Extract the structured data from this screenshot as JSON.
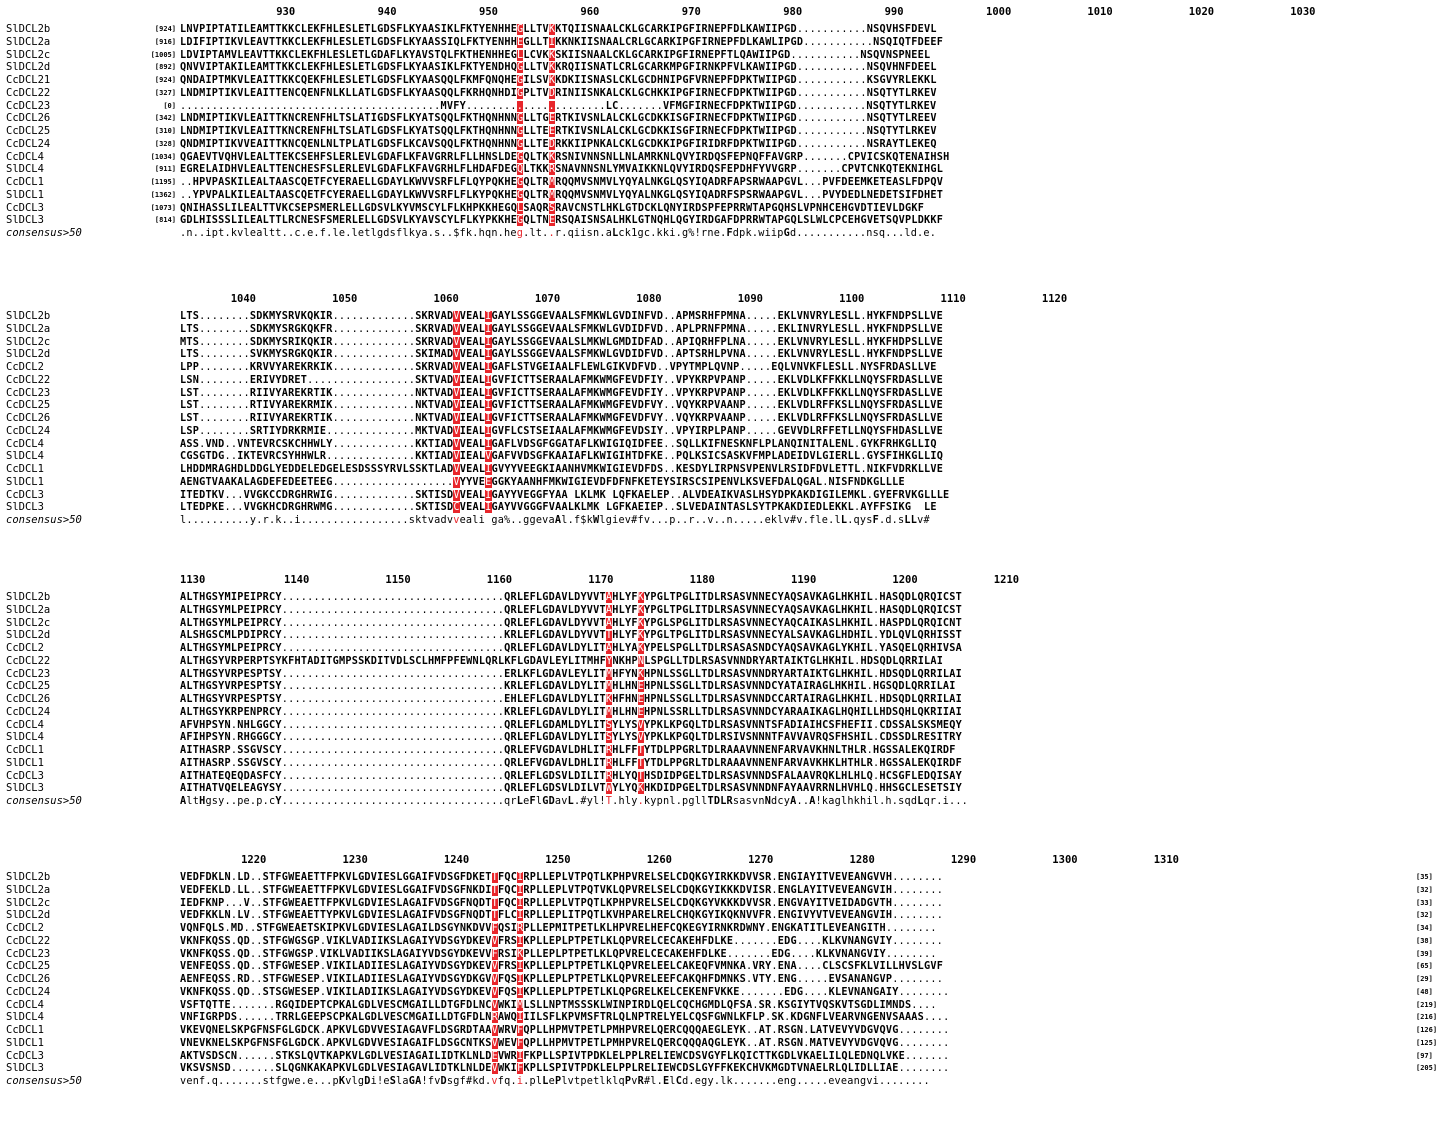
{
  "colors": {
    "conserved_bg": "#e8262b",
    "conserved_fg": "#ffffff",
    "consensus_highlight": "#e8262b"
  },
  "consensus_label": "consensus>50",
  "blocks": [
    {
      "ruler": [
        "930",
        "940",
        "950",
        "960",
        "970",
        "980",
        "990",
        "1000",
        "1010",
        "1020",
        "1030"
      ],
      "rows": [
        {
          "name": "SlDCL2b",
          "start": "[924]",
          "seq": "LNVPIPTATILEAMTTKKCLEKFHLESLETLGDSFLKYAASIKLFKTYENHHEGLLTVKKTQIISNAALCKLGCARKIPGFIRNEPFDLKAWIIPGD...........NSQVHSFDEVL"
        },
        {
          "name": "SlDCL2a",
          "start": "[916]",
          "seq": "LDIFIPTIKVLEAVTTKKCLEKFHLESLETLGDSFLKYAASSIQLFKTYENHHEGLLTIKKNKIISNAALCRLGCARKIPGFIRNEPFDLKAWLIPGD...........NSQIQTFDEEF"
        },
        {
          "name": "SlDCL2c",
          "start": "[1005]",
          "seq": "LDVIPTAMVLEAVTTKKCLEKFHLESLETLGDAFLKYAVSTQLFKTHENHHEGLLCVKKSKIISNAALCKLGCARKIPGFIRNEPFTLQAWIIPGD...........NSQVNSPNEEL"
        },
        {
          "name": "SlDCL2d",
          "start": "[892]",
          "seq": "QNVVIPTAKILEAMTTKKCLEKFHLESLETLGDSFLKYAASIKLFKTYENDHQGLLTVKKRQIISNATLCRLGCARKMPGFIRNKPFVLKAWIIPGD...........NSQVHNFDEEL"
        },
        {
          "name": "CcDCL21",
          "start": "[924]",
          "seq": "QNDAIPTMKVLEAITTKKCQEKFHLESLETLGDSFLKYAASQQLFKMFQNQHEGILSVKKDKIISNASLCKLGCDHNIPGFVRNEPFDPKTWIIPGD...........KSGVYRLEKKL"
        },
        {
          "name": "CcDCL22",
          "start": "[327]",
          "seq": "LNDMIPTIKVLEAITTENCQENFNLKLLATLGDSFLKYAASQQLFKRHQNHDIGPLTVDRINIISNKALCKLGCHKKIPGFIRNECFDPKTWIIPGD...........NSQTYTLRKEV"
        },
        {
          "name": "CcDCL23",
          "start": "[0]",
          "seq": ".........................................MVFY......................LC.......VFMGFIRNECFDPKTWIIPGD...........NSQTYTLRKEV"
        },
        {
          "name": "CcDCL26",
          "start": "[342]",
          "seq": "LNDMIPTIKVLEAITTKNCRENFHLTSLATIGDSFLKYATSQQLFKTHQNHNNGLLTGERTKIVSNLALCKLGCDKKISGFIRNECFDPKTWIIPGD...........NSQTYTLREEV"
        },
        {
          "name": "CcDCL25",
          "start": "[310]",
          "seq": "LNDMIPTIKVLEAITTKNCRENFHLTSLATLGDSFLKYATSQQLFKTHQNHNNGLLTEERTKIVSNLALCKLGCDKKISGFIRNECFDPKTWIIPGD...........NSQTYTLRKEV"
        },
        {
          "name": "CcDCL24",
          "start": "[328]",
          "seq": "QNDMIPTIKVVEAITTKNCQENLNLTPLATLGDSFLKCAVSQQLFKTHQNHNNGLLTEDRKKIIPNKALCKLGCDKKIPGFIRIDRFDPKTWIIPGD...........NSRAYTLEKEQ"
        },
        {
          "name": "CcDCL4",
          "start": "[1034]",
          "seq": "QGAEVTVQHVLEALTTEKCSEHFSLERLEVLGDAFLKFAVGRRLFLLHNSLDEGQLTKKRSNIVNNSNLLNLAMRKNLQVYIRDQSFEPNQFFAVGRP.......CPVICSKQTENAIHSH"
        },
        {
          "name": "SlDCL4",
          "start": "[911]",
          "seq": "EGRELAIDHVLEALTTENCHESFSLERLEVLGDAFLKFAVGRHLFLHDAFDEGQLTKKRSNAVNNSNLYMVAIKKNLQVYIRDQSFEPDHFYVVGRP.......CPVTCNKQTEKNIHGL"
        },
        {
          "name": "CcDCL1",
          "start": "[1195]",
          "seq": "..HPVPASKILEALTAASCQETFCYERAELLGDAYLKWVVSRFLFLQYPQKHEGQLTRMRQQMVSNMVLYQYALNKGLQSYIQADRFAPSRWAAPGVL...PVFDEEMKETEASLFDPQV"
        },
        {
          "name": "SlDCL1",
          "start": "[1362]",
          "seq": "..YPVPALKILEALTAASCQETFCYERAELLGDAYLKWVVSRFLFLKYPQKHEGQLTRMRQQMVSNMVLYQYALNKGLQSYIQADRFSPSRWAAPGVL...PVYDEDLNEDETSIFDHET"
        },
        {
          "name": "CcDCL3",
          "start": "[1073]",
          "seq": "QNIHASSLILEALTTVKCSEPSMERLELLGDSVLKYVMSCYLFLKHPKKHEGQLSAQRSRAVCNSTLHKLGTDCKLQNYIRDSPFEPRRWTAPGQHSLVPNHCEHGVDTIEVLDGKF"
        },
        {
          "name": "SlDCL3",
          "start": "[814]",
          "seq": "GDLHISSSLILEALTTLRCNESFSMERLELLGDSVLKYAVSCYLFLKYPKKHEGQLTNERSQAISNSALHKLGTNQHLQGYIRDGAFDPRRWTAPGQLSLWLCPCEHGVETSQVPLDKKF"
        },
        {
          "name": "consensus>50",
          "start": "",
          "seq": ".n..ipt.kvlealtt..c.e.f.le.letlgdsflkya.s..$fk.hqn.heg.lt..r.qiisn.aLck1gc.kki.g%!rne.Fdpk.wiipGd...........nsq...ld.e."
        }
      ]
    },
    {
      "ruler": [
        "1040",
        "1050",
        "1060",
        "1070",
        "1080",
        "1090",
        "1100",
        "1110",
        "1120"
      ],
      "rows": [
        {
          "name": "SlDCL2b",
          "start": "",
          "seq": "LTS........SDKMYSRVKQKIR.............SKRVADVVEALIGAYLSSGGEVAALSFMKWLGVDINFVD..APMSRHFPMNA.....EKLVNVRYLESLL.HYKFNDPSLLVE"
        },
        {
          "name": "SlDCL2a",
          "start": "",
          "seq": "LTS........SDKMYSRGKQKFR.............SKRVADVVEALIGAYLSSGGEVAALSFMKWLGVDIDFVD..APLPRNFPMNA.....EKLINVRYLESLL.HYKFNDPSLLVE"
        },
        {
          "name": "SlDCL2c",
          "start": "",
          "seq": "MTS........SDKMYSRIKQKIR.............SKRVADVVEALIGAYLSSGGEVAALSLMKWLGMDIDFAD..APIQRHFPLNA.....EKLVNVRYLESLL.HYKFHDPSLLVE"
        },
        {
          "name": "SlDCL2d",
          "start": "",
          "seq": "LTS........SVKMYSRGKQKIR.............SKIMADVVEALIGAYLSSGGEVAALSFMKWLGVDIDFVD..APTSRHLPVNA.....EKLVNVRYLESLL.HYKFNDPSLLVE"
        },
        {
          "name": "CcDCL2",
          "start": "",
          "seq": "LPP........KRVVYAREKRKIK.............SKRVADVVEALIGAFLSTVGEIAALFLEWLGIKVDFVD..VPYTMPLQVNP.....EQLVNVKFLESLL.NYSFRDASLLVE"
        },
        {
          "name": "CcDCL22",
          "start": "",
          "seq": "LSN........ERIVYDRET.................SKTVADVIEALIGVFICTTSERAALAFMKWMGFEVDFIY..VPYKRPVPANP.....EKLVDLKFFKKLLNQYSFRDASLLVE"
        },
        {
          "name": "CcDCL23",
          "start": "",
          "seq": "LST........RIIVYAREKRTIK.............NKTVADVIEALIGVFICTTSERAALAFMKWMGFEVDFIY..VPYKRPVPANP.....EKLVDLKFFKKLLNQYSFRDASLLVE"
        },
        {
          "name": "CcDCL25",
          "start": "",
          "seq": "LST........RTIVYAREKRMIK.............NKTVADVIEALIGVFICTTSERAALAFMKWMGFEVDFVY..VQYKRPVAANP.....EKLVDLRFFKSLLNQYSFRDASLLVE"
        },
        {
          "name": "CcDCL26",
          "start": "",
          "seq": "LST........RIIVYAREKRTIK.............NKTVADVIEALIGVFICTTSERAALAFMKWMGFEVDFVY..VQYKRPVAANP.....EKLVDLRFFKSLLNQYSFRDASLLVE"
        },
        {
          "name": "CcDCL24",
          "start": "",
          "seq": "LSP........SRTIYDRKRMIE..............MKTVADVIEALIGVFLCSTSEIAALAFMKWMGFEVDSIY..VPYIRPLPANP.....GEVVDLRFFETLLNQYSFHDASLLVE"
        },
        {
          "name": "CcDCL4",
          "start": "",
          "seq": "ASS.VND..VNTEVRCSKCHHWLY.............KKTIADVVEALIGAFLVDSGFGGATAFLKWIGIQIDFEE..SQLLKIFNESKNFLPLANQINITALENL.GYKFRHKGLLIQ"
        },
        {
          "name": "SlDCL4",
          "start": "",
          "seq": "CGSGTDG..IKTEVRCSYHHWLR..............KKTIADVIEALVGAFVVDSGFKAAIAFLKWIGIHTDFKE..PQLKSICSASKVFMPLADEIDVLGIERLL.GYSFIHKGLLIQ"
        },
        {
          "name": "CcDCL1",
          "start": "",
          "seq": "LHDDMRAGHDLDDGLYEDDELEDGELESDSSSYRVLSSKTLADVVEALIGVYYVEEGKIAANHVMKWIGIEVDFDS..KESDYLIRPNSVPENVLRSIDFDVLETTL.NIKFVDRKLLVE"
        },
        {
          "name": "SlDCL1",
          "start": "",
          "seq": "AENGTVAAKALAGDEFEDEETEEG...................VYYVEEGGKYAANHFMKWIGIEVDFDFNFKETEYSIRSCSIPENVLKSVEFDALQGAL.NISFNDKGLLLE"
        },
        {
          "name": "CcDCL3",
          "start": "",
          "seq": "ITEDTKV...VVGKCCDRGHRWIG.............SKTISDVVEALIGAYYVEGGFYAA LKLMK LQFKAELEP..ALVDEAIKVASLHSYDPKAKDIGILEMKL.GYEFRVKGLLLE"
        },
        {
          "name": "SlDCL3",
          "start": "",
          "seq": "LTEDPKE...VVGKHCDRGHRWMG.............SKTISDCVEALIGAYVVGGGFVAALKLMK LGFKAEIEP..SLVEDAINTASLSYTPKAKDIEDLEKKL.AYFFSIKG  LE"
        },
        {
          "name": "consensus>50",
          "start": "",
          "seq": "l..........y.r.k..i.................sktvadvveali ga%..ggevaAl.f$kWlgiev#fv...p..r..v..n.....eklv#v.fle.lL.qysF.d.sLLv#"
        }
      ]
    },
    {
      "ruler": [
        "1130",
        "1140",
        "1150",
        "1160",
        "1170",
        "1180",
        "1190",
        "1200",
        "1210"
      ],
      "rows": [
        {
          "name": "SlDCL2b",
          "start": "",
          "seq": "ALTHGSYMIPEIPRCY...................................QRLEFLGDAVLDYVVTAHLYFKYPGLTPGLITDLRSASVNNECYAQSAVKAGLHKHIL.HASQDLQRQICST"
        },
        {
          "name": "SlDCL2a",
          "start": "",
          "seq": "ALTHGSYMLPEIPRCY...................................QRLEFLGDAVLDYVVTAHLYFKYPGLTPGLITDLRSASVNNECYAQSAVKAGLHKHIL.HASQDLQRQICST"
        },
        {
          "name": "SlDCL2c",
          "start": "",
          "seq": "ALTHGSYMLPEIPRCY...................................QRLEFLGDAVLDYVVTAHLYFKYPGLSPGLITDLRSASVNNECYAQCAIKASLHKHIL.HASPDLQRQICNT"
        },
        {
          "name": "SlDCL2d",
          "start": "",
          "seq": "ALSHGSCMLPDIPRCY...................................KRLEFLGDAVLDYVVTTHLYFKYPGLTPGLITDLRSASVNNECYALSAVKAGLHDHIL.YDLQVLQRHISST"
        },
        {
          "name": "CcDCL2",
          "start": "",
          "seq": "ALTHGSYMLPEIPRCY...................................QRLEFLGDAVLDYLITAHLYAKYPELSPGLLTDLRSASASNDCYAQSAVKAGLYKHIL.YASQELQRHIVSA"
        },
        {
          "name": "CcDCL22",
          "start": "",
          "seq": "ALTHGSYVRPERPTSYKFHTADITGMPSSKDITVDLSCLHMFPFEWNLQRLKFLGDAVLEYLITMHFYNKHPNLSPGLLTDLRSASVNNDRYARTAIKTGLHKHIL.HDSQDLQRRILAI"
        },
        {
          "name": "CcDCL23",
          "start": "",
          "seq": "ALTHGSYVRPESPTSY...................................ERLKFLGDAVLEYLITMHFYNKHPNLSSGLLTDLRSASVNNDRYARTAIKTGLHKHIL.HDSQDLQRRILAI"
        },
        {
          "name": "CcDCL25",
          "start": "",
          "seq": "ALTHGSYVRPESPTSY...................................KRLEFLGDAVLDYLITMHLHNEHPNLSSGLLTDLRSASVNNDCYATAIRAGLHKHIL.HGSQDLQRRILAI"
        },
        {
          "name": "CcDCL26",
          "start": "",
          "seq": "ALTHGSYVRPESPTSY...................................EHLEFLGDAVLDYLITKHFHNEHPNLSSGLLTDLRSASVNNDCCARTAIRAGLHKHIL.HDSQDLQRRILAI"
        },
        {
          "name": "CcDCL24",
          "start": "",
          "seq": "ALTHGSYKRPENPRCY...................................KRLEFLGDAVLDYLITMHLHNEHPNLSSRLLTDLRSASVNNDCYARAAIKAGLHQHILLHDSQHLQKRIIAI"
        },
        {
          "name": "CcDCL4",
          "start": "",
          "seq": "AFVHPSYN.NHLGGCY...................................QRLEFLGDAMLDYLITSYLYSVYPKLKPGQLTDLRSASVNNTSFADIAIHCSFHEFII.CDSSALSKSMEQY"
        },
        {
          "name": "SlDCL4",
          "start": "",
          "seq": "AFIHPSYN.RHGGGCY...................................QRLEFLGDAVLDYLITSYLYSVYPKLKPGQLTDLRSIVSNNNTFAVVAVRQSFHSHIL.CDSSDLRESITRY"
        },
        {
          "name": "CcDCL1",
          "start": "",
          "seq": "AITHASRP.SSGVSCY...................................QRLEFVGDAVLDHLITRHLFFTYTDLPPGRLTDLRAAAVNNENFARVAVKHNLTHLR.HGSSALEKQIRDF"
        },
        {
          "name": "SlDCL1",
          "start": "",
          "seq": "AITHASRP.SSGVSCY...................................QRLEFVGDAVLDHLITRHLFFTYTDLPPGRLTDLRAAAVNNENFARVAVKHKLHTHLR.HGSSALEKQIRDF"
        },
        {
          "name": "CcDCL3",
          "start": "",
          "seq": "AITHATEQEQDASFCY...................................QRLEFLGDSVLDILITRHLYQTHSDIDPGELTDLRSASVNNDSFALAAVRQKLHLHLQ.HCSGFLEDQISAY"
        },
        {
          "name": "SlDCL3",
          "start": "",
          "seq": "AITHATVQELEAGYSY...................................QRLEFLGDSVLDILVTWYLYQKHKDIDPGELTDLRSASVNNDNFAYAAVRRNLHVHLQ.HHSGCLESETSIY"
        },
        {
          "name": "consensus>50",
          "start": "",
          "seq": "AltHgsy..pe.p.cY...................................qrLeFlGDavL.#yl!T.hly.kypnl.pgllTDLRsasvnNdcyA..A!kaglhkhil.h.sqdLqr.i..."
        }
      ]
    },
    {
      "ruler": [
        "1220",
        "1230",
        "1240",
        "1250",
        "1260",
        "1270",
        "1280",
        "1290",
        "1300",
        "1310"
      ],
      "rows": [
        {
          "name": "SlDCL2b",
          "start": "",
          "seq": "VEDFDKLN.LD..STFGWEAETTFPKVLGDVIESLGGAIFVDSGFDKETTFQCIRPLLEPLVTPQTLKPHPVRELSELCDQKGYIRKKDVVSR.ENGIAYITVEVEANGVVH........",
          "end": "[35]"
        },
        {
          "name": "SlDCL2a",
          "start": "",
          "seq": "VEDFEKLD.LL..STFGWEAETTFPKVLGDVIESLGGAIFVDSGFNKDITFQCIRPLLEPLVTPQTVKLQPVRELSELCDQKGYIKKKDVISR.ENGLAYITVEVEANGVIH........",
          "end": "[32]"
        },
        {
          "name": "SlDCL2c",
          "start": "",
          "seq": "IEDFKNP...V..STFGWEAETTFPKVLGDVIESLAGAIFVDSGFNQDTTFQCIRPLLEPLVTPQTLKPHPVRELSELCDQKGYVKKKDVVSR.ENGVAYITVEIDADGVTH........",
          "end": "[33]"
        },
        {
          "name": "SlDCL2d",
          "start": "",
          "seq": "VEDFKKLN.LV..STFGWEAETTYPKVLGDVIESLAGAIFVDSGFNQDTTFLCIRPLLEPLITPQTLKVHPARELRELCHQKGYIKQKNVVFR.ENGIVYVTVEVEANGVIH........",
          "end": "[32]"
        },
        {
          "name": "CcDCL2",
          "start": "",
          "seq": "VQNFQLS.MD..STFGWEAETSKIPKVLGDVIESLAGAILDSGYNKDVVFQSIRPLLEPMITPETLKLHPVRELHEFCQKEGYIRNKRDWNY.ENGKATITLEVEANGITH........",
          "end": "[34]"
        },
        {
          "name": "CcDCL22",
          "start": "",
          "seq": "VKNFKQSS.QD..STFGWGSGP.VIKLVADIIKSLAGAIYVDSGYDKEVVFRSIKPLLEPLPTPETLKLQPVRELCECAKEHFDLKE.......EDG....KLKVNANGVIY........",
          "end": "[38]"
        },
        {
          "name": "CcDCL23",
          "start": "",
          "seq": "VKNFKQSS.QD..STFGWGSP.VIKLVADIIKSLAGAIYVDSGYDKEVVFRSIKPLLEPLPTPETLKLQPVRELCECAKEHFDLKE.......EDG....KLKVNANGVIY........",
          "end": "[39]"
        },
        {
          "name": "CcDCL25",
          "start": "",
          "seq": "VENFEQSS.QD..STFGWESEP.VIKILADIIESLAGAIYVDSGYDKEVVFRSIKPLLEPLPTPETLKLQPVRELEELCAKEQFVMNKA.VRY.ENA....CLSCSFKLVILLHVSLGVF",
          "end": "[65]"
        },
        {
          "name": "CcDCL26",
          "start": "",
          "seq": "AENFEQSS.RD..STFGWESEP.VIKILADIIESLAGAIYVDSGYDKGVVFQSIKPLLEPLPTPETLKLQPVRELEEFCAKQHFDMNKS.VTY.ENG.....EVSANANGVP........",
          "end": "[29]"
        },
        {
          "name": "CcDCL24",
          "start": "",
          "seq": "VKNFKQSS.QD..STSGWESEP.VIKILADIIKSLAGAIYVDSGYDKEVVFQSIKPLLEPLPTPETLKLQPGRELKELCEKENFVKKE.......EDG....KLEVNANGAIY........",
          "end": "[48]"
        },
        {
          "name": "CcDCL4",
          "start": "",
          "seq": "VSFTQTTE.......RGQIDEPTCPKALGDLVESCMGAILLDTGFDLNCVWKIMLSLLNPTMSSSKLWINPIRDLQELCQCHGMDLQFSA.SR.KSGIYTVQSKVTSGDLIMNDS....",
          "end": "[219]"
        },
        {
          "name": "SlDCL4",
          "start": "",
          "seq": "VNFIGRPDS......TRRLGEEPSCPKALGDLVESCMGAILLDTGFDLNRAWQIIILSFLKPVMSFTRLQLNPTRELYELCQSFGWNLKFLP.SK.KDGNFLVEARVNGENVSAAAS....",
          "end": "[216]"
        },
        {
          "name": "CcDCL1",
          "start": "",
          "seq": "VKEVQNELSKPGFNSFGLGDCK.APKVLGDVVESIAGAVFLDSGRDTAAVWRVFQPLLHPMVTPETLPMHPVRELQERCQQQAEGLEYK..AT.RSGN.LATVEVYVDGVQVG........",
          "end": "[126]"
        },
        {
          "name": "SlDCL1",
          "start": "",
          "seq": "VNEVKNELSKPGFNSFGLGDCK.APKVLGDVVESIAGAIFLDSGCNTKSVWEVFQPLLHPMVTPETLPMHPVRELQERCQQQAQGLEYK..AT.RSGN.MATVEVYVDGVQVG........",
          "end": "[125]"
        },
        {
          "name": "CcDCL3",
          "start": "",
          "seq": "AKTVSDSCN......STKSLQVTKAPKVLGDLVESIAGAILIDTKLNLDEVWRIFKPLLSPIVTPDKLELPPLRELIEWCDSVGYFLKQICTTKGDLVKAELILQLEDNQLVKE.......",
          "end": "[97]"
        },
        {
          "name": "SlDCL3",
          "start": "",
          "seq": "VKSVSNSD.......SLQGNKAKAPKVLGDLVESIAGAVLIDTKLNLDEVWKIFKPLLSPIVTPDKLELPPLRELIEWCDSLGYFFKEKCHVKMGDTVNAELRLQLIDLLIAE........",
          "end": "[205]"
        },
        {
          "name": "consensus>50",
          "start": "",
          "seq": "venf.q.......stfgwe.e...pKvlgDi!eSlaGA!fvDsgf#kd.vfq.i.plLePlvtpetlklqPvR#l.ElCd.egy.lk.......eng.....eveangvi........",
          "end": ""
        }
      ]
    }
  ]
}
